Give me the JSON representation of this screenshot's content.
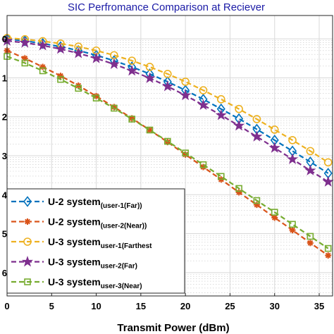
{
  "chart_data": {
    "type": "line",
    "title": "SIC Perfromance Comparison at Reciever",
    "xlabel": "Transmit Power (dBm)",
    "ylabel": "",
    "xlim": [
      0,
      36.5
    ],
    "ylim": [
      -6.6,
      0.6
    ],
    "x_ticks": [
      "0",
      "5",
      "10",
      "15",
      "20",
      "25",
      "30",
      "35"
    ],
    "x_tick_values": [
      0,
      5,
      10,
      15,
      20,
      25,
      30,
      35
    ],
    "y_ticks": [
      "0",
      "-1",
      "-2",
      "-3",
      "-4",
      "-5",
      "-6"
    ],
    "y_tick_values": [
      0,
      -1,
      -2,
      -3,
      -4,
      -5,
      -6
    ],
    "y_tick_display": [
      "0",
      "1",
      "2",
      "3",
      "4",
      "5",
      "6"
    ],
    "grid": true,
    "legend_position": "bottom-left",
    "series": [
      {
        "name": "U-2 system",
        "name_sub": "(user-1(Far))",
        "color": "#0072BD",
        "marker": "diamond",
        "x": [
          0,
          2,
          4,
          6,
          8,
          10,
          12,
          14,
          16,
          18,
          20,
          22,
          24,
          26,
          28,
          30,
          32,
          34,
          36
        ],
        "y": [
          0.0,
          -0.05,
          -0.12,
          -0.2,
          -0.3,
          -0.42,
          -0.56,
          -0.72,
          -0.9,
          -1.1,
          -1.32,
          -1.55,
          -1.8,
          -2.05,
          -2.32,
          -2.6,
          -2.88,
          -3.16,
          -3.45
        ]
      },
      {
        "name": "U-2 system",
        "name_sub": "(user-2(Near))",
        "color": "#D95319",
        "marker": "asterisk",
        "x": [
          0,
          2,
          4,
          6,
          8,
          10,
          12,
          14,
          16,
          18,
          20,
          22,
          24,
          26,
          28,
          30,
          32,
          34,
          36
        ],
        "y": [
          -0.3,
          -0.5,
          -0.72,
          -0.95,
          -1.2,
          -1.47,
          -1.75,
          -2.04,
          -2.34,
          -2.65,
          -2.97,
          -3.29,
          -3.61,
          -3.94,
          -4.26,
          -4.59,
          -4.91,
          -5.24,
          -5.56
        ]
      },
      {
        "name": "U-3 system",
        "name_sub": "user-1(Farthest",
        "color": "#EDB120",
        "marker": "circle",
        "x": [
          0,
          2,
          4,
          6,
          8,
          10,
          12,
          14,
          16,
          18,
          20,
          22,
          24,
          26,
          28,
          30,
          32,
          34,
          36
        ],
        "y": [
          0.02,
          -0.01,
          -0.06,
          -0.12,
          -0.2,
          -0.3,
          -0.42,
          -0.56,
          -0.72,
          -0.9,
          -1.1,
          -1.32,
          -1.55,
          -1.8,
          -2.06,
          -2.33,
          -2.6,
          -2.88,
          -3.17
        ]
      },
      {
        "name": "U-3 system",
        "name_sub": "user-2(Far)",
        "color": "#7E2F8E",
        "marker": "star",
        "x": [
          0,
          2,
          4,
          6,
          8,
          10,
          12,
          14,
          16,
          18,
          20,
          22,
          24,
          26,
          28,
          30,
          32,
          34,
          36
        ],
        "y": [
          -0.05,
          -0.1,
          -0.17,
          -0.26,
          -0.37,
          -0.5,
          -0.65,
          -0.82,
          -1.01,
          -1.22,
          -1.45,
          -1.7,
          -1.96,
          -2.23,
          -2.51,
          -2.8,
          -3.09,
          -3.38,
          -3.67
        ]
      },
      {
        "name": "U-3 system",
        "name_sub": "user-3(Near)",
        "color": "#77AC30",
        "marker": "square",
        "x": [
          0,
          2,
          4,
          6,
          8,
          10,
          12,
          14,
          16,
          18,
          20,
          22,
          24,
          26,
          28,
          30,
          32,
          34,
          36
        ],
        "y": [
          -0.45,
          -0.62,
          -0.82,
          -1.04,
          -1.27,
          -1.52,
          -1.78,
          -2.06,
          -2.34,
          -2.63,
          -2.93,
          -3.23,
          -3.53,
          -3.84,
          -4.15,
          -4.45,
          -4.76,
          -5.07,
          -5.38
        ]
      }
    ]
  }
}
